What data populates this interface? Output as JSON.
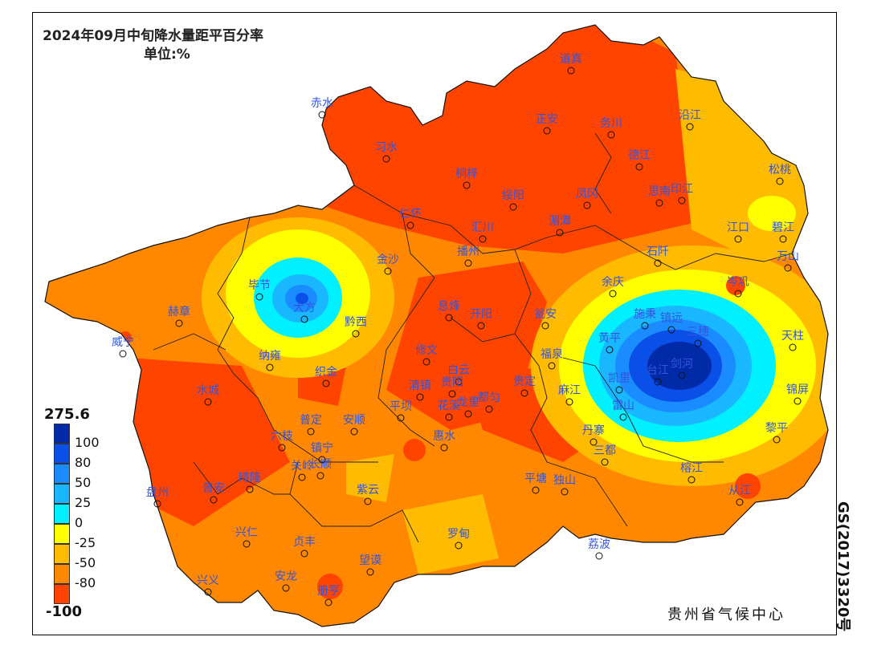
{
  "map": {
    "title": "2024年09月中旬降水量距平百分率",
    "unit": "单位:%",
    "credit": "贵州省气候中心",
    "approval": "GS(2017)3320号"
  },
  "legend": {
    "max": "275.6",
    "min": "-100",
    "bins": [
      {
        "color": "#002aa8",
        "label": "100"
      },
      {
        "color": "#0a50e8",
        "label": "80"
      },
      {
        "color": "#1a8cff",
        "label": "50"
      },
      {
        "color": "#19b7ff",
        "label": "25"
      },
      {
        "color": "#00f0ff",
        "label": "0"
      },
      {
        "color": "#ffff00",
        "label": "-25"
      },
      {
        "color": "#ffbb00",
        "label": "-50"
      },
      {
        "color": "#ff8800",
        "label": "-80"
      },
      {
        "color": "#ff4400",
        "label": ""
      }
    ]
  },
  "stations": [
    {
      "name": "道真"
    },
    {
      "name": "赤水"
    },
    {
      "name": "正安"
    },
    {
      "name": "务川"
    },
    {
      "name": "沿江"
    },
    {
      "name": "习水"
    },
    {
      "name": "德江"
    },
    {
      "name": "松桃"
    },
    {
      "name": "桐梓"
    },
    {
      "name": "凤冈"
    },
    {
      "name": "印江"
    },
    {
      "name": "绥阳"
    },
    {
      "name": "思南"
    },
    {
      "name": "仁怀"
    },
    {
      "name": "湄潭"
    },
    {
      "name": "江口"
    },
    {
      "name": "碧江"
    },
    {
      "name": "汇川"
    },
    {
      "name": "石阡"
    },
    {
      "name": "万山"
    },
    {
      "name": "播州"
    },
    {
      "name": "金沙"
    },
    {
      "name": "毕节"
    },
    {
      "name": "余庆"
    },
    {
      "name": "岑巩"
    },
    {
      "name": "大方"
    },
    {
      "name": "息烽"
    },
    {
      "name": "开阳"
    },
    {
      "name": "瓮安"
    },
    {
      "name": "施秉"
    },
    {
      "name": "镇远"
    },
    {
      "name": "赫章"
    },
    {
      "name": "黔西"
    },
    {
      "name": "黄平"
    },
    {
      "name": "三穗"
    },
    {
      "name": "威宁"
    },
    {
      "name": "纳雍"
    },
    {
      "name": "修文"
    },
    {
      "name": "福泉"
    },
    {
      "name": "天柱"
    },
    {
      "name": "织金"
    },
    {
      "name": "白云"
    },
    {
      "name": "台江"
    },
    {
      "name": "剑河"
    },
    {
      "name": "水城"
    },
    {
      "name": "清镇"
    },
    {
      "name": "贵阳"
    },
    {
      "name": "贵定"
    },
    {
      "name": "麻江"
    },
    {
      "name": "凯里"
    },
    {
      "name": "锦屏"
    },
    {
      "name": "平坝"
    },
    {
      "name": "龙里"
    },
    {
      "name": "雷山"
    },
    {
      "name": "普定"
    },
    {
      "name": "安顺"
    },
    {
      "name": "花溪"
    },
    {
      "name": "都匀"
    },
    {
      "name": "六枝"
    },
    {
      "name": "长顺"
    },
    {
      "name": "丹寨"
    },
    {
      "name": "黎平"
    },
    {
      "name": "惠水"
    },
    {
      "name": "镇宁"
    },
    {
      "name": "三都"
    },
    {
      "name": "关岭"
    },
    {
      "name": "盘州"
    },
    {
      "name": "普安"
    },
    {
      "name": "晴隆"
    },
    {
      "name": "紫云"
    },
    {
      "name": "平塘"
    },
    {
      "name": "独山"
    },
    {
      "name": "榕江"
    },
    {
      "name": "从江"
    },
    {
      "name": "兴仁"
    },
    {
      "name": "贞丰"
    },
    {
      "name": "罗甸"
    },
    {
      "name": "荔波"
    },
    {
      "name": "望谟"
    },
    {
      "name": "兴义"
    },
    {
      "name": "安龙"
    },
    {
      "name": "册亨"
    }
  ]
}
